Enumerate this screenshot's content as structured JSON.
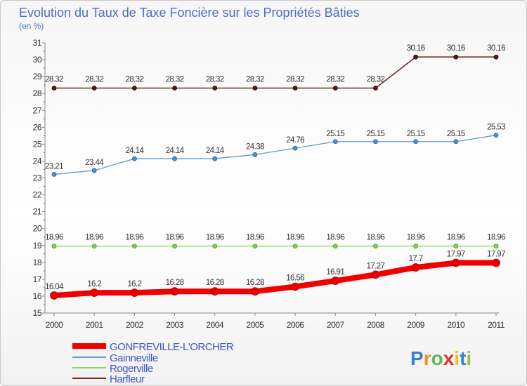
{
  "chart_data": {
    "type": "line",
    "title": "Evolution du Taux de Taxe Foncière sur les Propriétés Bâties",
    "ylabel": "(en %)",
    "xlabel": "",
    "ylim": [
      15,
      31
    ],
    "yticks": [
      15,
      16,
      17,
      18,
      19,
      20,
      21,
      22,
      23,
      24,
      25,
      26,
      27,
      28,
      29,
      30,
      31
    ],
    "x": [
      "2000",
      "2001",
      "2002",
      "2003",
      "2004",
      "2005",
      "2006",
      "2007",
      "2008",
      "2009",
      "2010",
      "2011"
    ],
    "series": [
      {
        "name": "Harfleur",
        "color": "#6e2a2a",
        "values": [
          28.32,
          28.32,
          28.32,
          28.32,
          28.32,
          28.32,
          28.32,
          28.32,
          28.32,
          30.16,
          30.16,
          30.16
        ],
        "labels": [
          "28.32",
          "28.32",
          "28.32",
          "28.32",
          "28.32",
          "28.32",
          "28.32",
          "28.32",
          "28.32",
          "30.16",
          "30.16",
          "30.16"
        ]
      },
      {
        "name": "Gainneville",
        "color": "#5b9bd5",
        "values": [
          23.21,
          23.44,
          24.14,
          24.14,
          24.14,
          24.38,
          24.76,
          25.15,
          25.15,
          25.15,
          25.15,
          25.53
        ],
        "labels": [
          "23.21",
          "23.44",
          "24.14",
          "24.14",
          "24.14",
          "24.38",
          "24.76",
          "25.15",
          "25.15",
          "25.15",
          "25.15",
          "25.53"
        ]
      },
      {
        "name": "Rogerville",
        "color": "#8dd35f",
        "values": [
          18.96,
          18.96,
          18.96,
          18.96,
          18.96,
          18.96,
          18.96,
          18.96,
          18.96,
          18.96,
          18.96,
          18.96
        ],
        "labels": [
          "18.96",
          "18.96",
          "18.96",
          "18.96",
          "18.96",
          "18.96",
          "18.96",
          "18.96",
          "18.96",
          "18.96",
          "18.96",
          "18.96"
        ]
      },
      {
        "name": "GONFREVILLE-L'ORCHER",
        "color": "#f00000",
        "values": [
          16.04,
          16.2,
          16.2,
          16.28,
          16.28,
          16.28,
          16.56,
          16.91,
          17.27,
          17.7,
          17.97,
          17.97
        ],
        "labels": [
          "16.04",
          "16.2",
          "16.2",
          "16.28",
          "16.28",
          "16.28",
          "16.56",
          "16.91",
          "17.27",
          "17.7",
          "17.97",
          "17.97"
        ]
      }
    ],
    "legend": [
      "GONFREVILLE-L'ORCHER",
      "Gainneville",
      "Rogerville",
      "Harfleur"
    ],
    "legend_position": "bottom-left",
    "grid": false
  },
  "brand": {
    "letters": [
      "P",
      "r",
      "o",
      "x",
      "i",
      "t",
      "i"
    ],
    "colors": [
      "#3a7fd5",
      "#f28c1e",
      "#5cb85c",
      "#d9342b",
      "#f2c21e",
      "#3a7fd5",
      "#8cc63f"
    ]
  }
}
